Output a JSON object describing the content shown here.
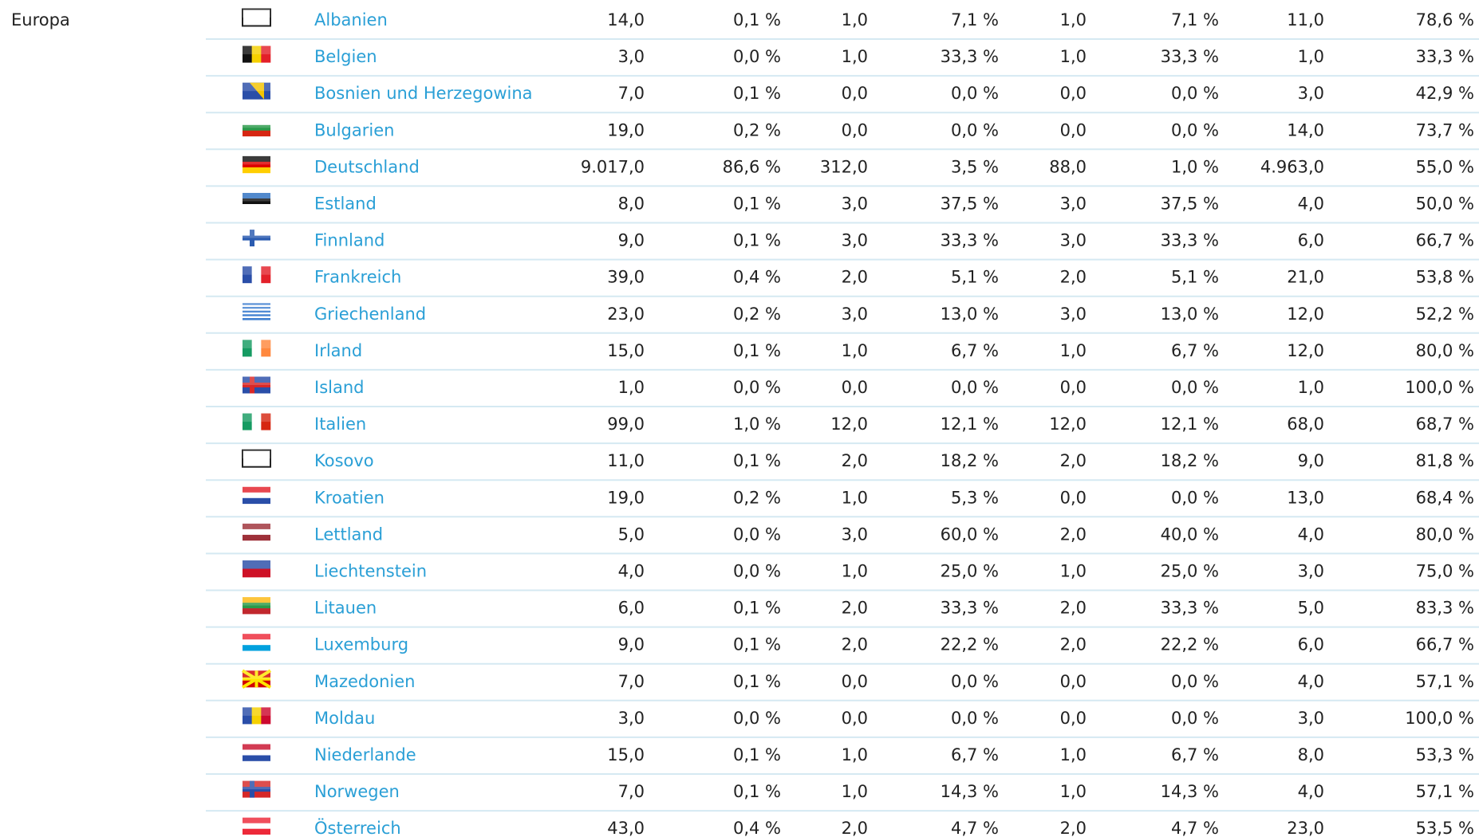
{
  "region": "Europa",
  "rows": [
    {
      "country": "Albanien",
      "cells": [
        "14,0",
        "0,1 %",
        "1,0",
        "7,1 %",
        "1,0",
        "7,1 %",
        "11,0",
        "78,6 %"
      ]
    },
    {
      "country": "Belgien",
      "cells": [
        "3,0",
        "0,0 %",
        "1,0",
        "33,3 %",
        "1,0",
        "33,3 %",
        "1,0",
        "33,3 %"
      ]
    },
    {
      "country": "Bosnien und Herzegowina",
      "cells": [
        "7,0",
        "0,1 %",
        "0,0",
        "0,0 %",
        "0,0",
        "0,0 %",
        "3,0",
        "42,9 %"
      ]
    },
    {
      "country": "Bulgarien",
      "cells": [
        "19,0",
        "0,2 %",
        "0,0",
        "0,0 %",
        "0,0",
        "0,0 %",
        "14,0",
        "73,7 %"
      ]
    },
    {
      "country": "Deutschland",
      "cells": [
        "9.017,0",
        "86,6 %",
        "312,0",
        "3,5 %",
        "88,0",
        "1,0 %",
        "4.963,0",
        "55,0 %"
      ]
    },
    {
      "country": "Estland",
      "cells": [
        "8,0",
        "0,1 %",
        "3,0",
        "37,5 %",
        "3,0",
        "37,5 %",
        "4,0",
        "50,0 %"
      ]
    },
    {
      "country": "Finnland",
      "cells": [
        "9,0",
        "0,1 %",
        "3,0",
        "33,3 %",
        "3,0",
        "33,3 %",
        "6,0",
        "66,7 %"
      ]
    },
    {
      "country": "Frankreich",
      "cells": [
        "39,0",
        "0,4 %",
        "2,0",
        "5,1 %",
        "2,0",
        "5,1 %",
        "21,0",
        "53,8 %"
      ]
    },
    {
      "country": "Griechenland",
      "cells": [
        "23,0",
        "0,2 %",
        "3,0",
        "13,0 %",
        "3,0",
        "13,0 %",
        "12,0",
        "52,2 %"
      ]
    },
    {
      "country": "Irland",
      "cells": [
        "15,0",
        "0,1 %",
        "1,0",
        "6,7 %",
        "1,0",
        "6,7 %",
        "12,0",
        "80,0 %"
      ]
    },
    {
      "country": "Island",
      "cells": [
        "1,0",
        "0,0 %",
        "0,0",
        "0,0 %",
        "0,0",
        "0,0 %",
        "1,0",
        "100,0 %"
      ]
    },
    {
      "country": "Italien",
      "cells": [
        "99,0",
        "1,0 %",
        "12,0",
        "12,1 %",
        "12,0",
        "12,1 %",
        "68,0",
        "68,7 %"
      ]
    },
    {
      "country": "Kosovo",
      "cells": [
        "11,0",
        "0,1 %",
        "2,0",
        "18,2 %",
        "2,0",
        "18,2 %",
        "9,0",
        "81,8 %"
      ]
    },
    {
      "country": "Kroatien",
      "cells": [
        "19,0",
        "0,2 %",
        "1,0",
        "5,3 %",
        "0,0",
        "0,0 %",
        "13,0",
        "68,4 %"
      ]
    },
    {
      "country": "Lettland",
      "cells": [
        "5,0",
        "0,0 %",
        "3,0",
        "60,0 %",
        "2,0",
        "40,0 %",
        "4,0",
        "80,0 %"
      ]
    },
    {
      "country": "Liechtenstein",
      "cells": [
        "4,0",
        "0,0 %",
        "1,0",
        "25,0 %",
        "1,0",
        "25,0 %",
        "3,0",
        "75,0 %"
      ]
    },
    {
      "country": "Litauen",
      "cells": [
        "6,0",
        "0,1 %",
        "2,0",
        "33,3 %",
        "2,0",
        "33,3 %",
        "5,0",
        "83,3 %"
      ]
    },
    {
      "country": "Luxemburg",
      "cells": [
        "9,0",
        "0,1 %",
        "2,0",
        "22,2 %",
        "2,0",
        "22,2 %",
        "6,0",
        "66,7 %"
      ]
    },
    {
      "country": "Mazedonien",
      "cells": [
        "7,0",
        "0,1 %",
        "0,0",
        "0,0 %",
        "0,0",
        "0,0 %",
        "4,0",
        "57,1 %"
      ]
    },
    {
      "country": "Moldau",
      "cells": [
        "3,0",
        "0,0 %",
        "0,0",
        "0,0 %",
        "0,0",
        "0,0 %",
        "3,0",
        "100,0 %"
      ]
    },
    {
      "country": "Niederlande",
      "cells": [
        "15,0",
        "0,1 %",
        "1,0",
        "6,7 %",
        "1,0",
        "6,7 %",
        "8,0",
        "53,3 %"
      ]
    },
    {
      "country": "Norwegen",
      "cells": [
        "7,0",
        "0,1 %",
        "1,0",
        "14,3 %",
        "1,0",
        "14,3 %",
        "4,0",
        "57,1 %"
      ]
    },
    {
      "country": "Österreich",
      "cells": [
        "43,0",
        "0,4 %",
        "2,0",
        "4,7 %",
        "2,0",
        "4,7 %",
        "23,0",
        "53,5 %"
      ]
    }
  ]
}
